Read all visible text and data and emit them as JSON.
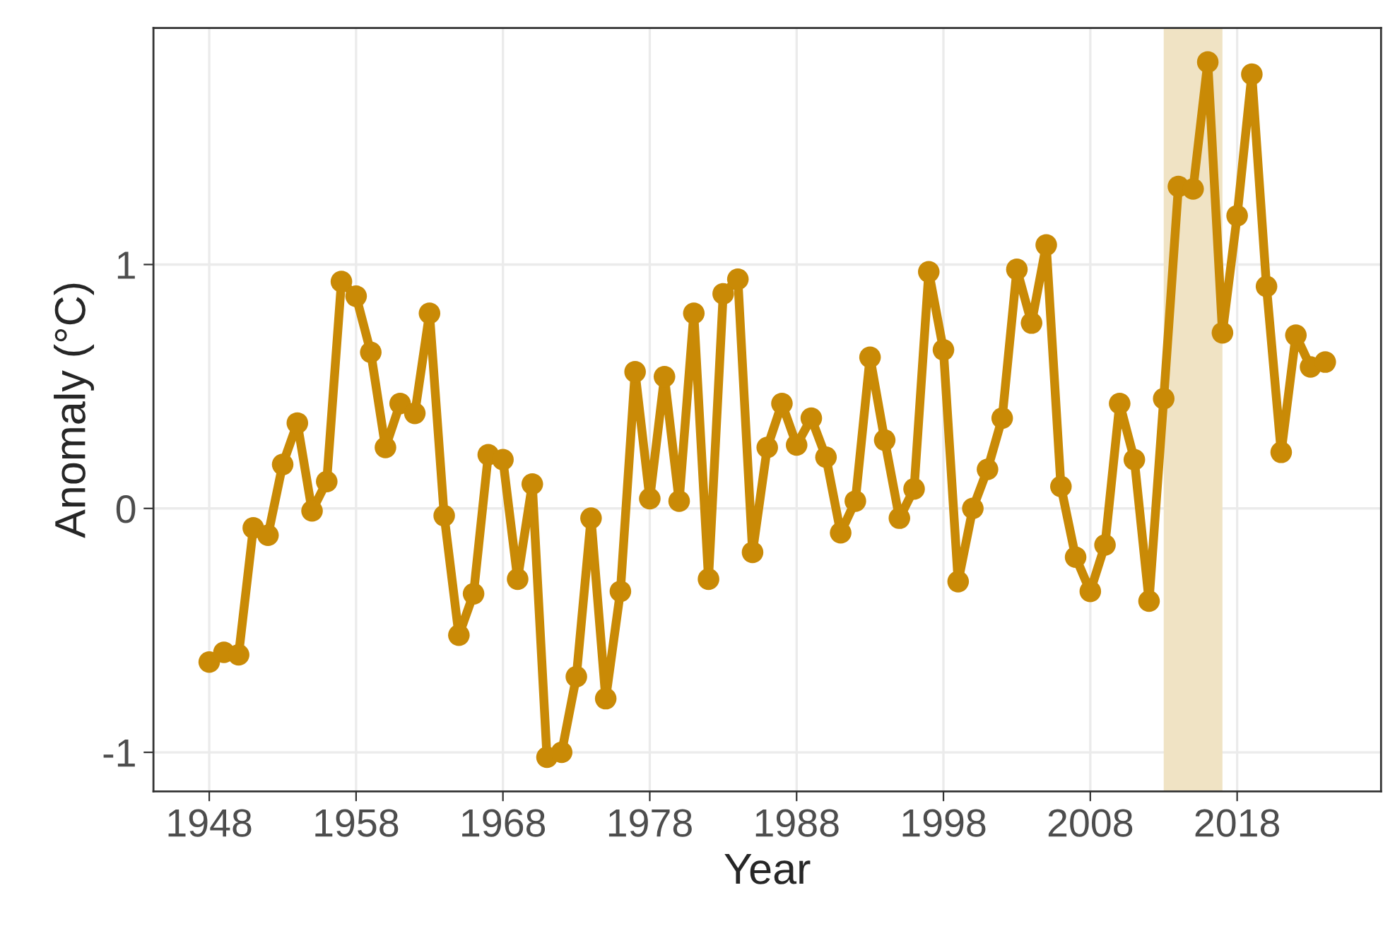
{
  "chart_data": {
    "type": "line",
    "xlabel": "Year",
    "ylabel": "Anomaly (°C)",
    "x": [
      1948,
      1949,
      1950,
      1951,
      1952,
      1953,
      1954,
      1955,
      1956,
      1957,
      1958,
      1959,
      1960,
      1961,
      1962,
      1963,
      1964,
      1965,
      1966,
      1967,
      1968,
      1969,
      1970,
      1971,
      1972,
      1973,
      1974,
      1975,
      1976,
      1977,
      1978,
      1979,
      1980,
      1981,
      1982,
      1983,
      1984,
      1985,
      1986,
      1987,
      1988,
      1989,
      1990,
      1991,
      1992,
      1993,
      1994,
      1995,
      1996,
      1997,
      1998,
      1999,
      2000,
      2001,
      2002,
      2003,
      2004,
      2005,
      2006,
      2007,
      2008,
      2009,
      2010,
      2011,
      2012,
      2013,
      2014,
      2015,
      2016,
      2017,
      2018,
      2019,
      2020,
      2021,
      2022,
      2023,
      2024
    ],
    "series": [
      {
        "color": "#c98a06",
        "values": [
          -0.63,
          -0.59,
          -0.6,
          -0.08,
          -0.11,
          0.18,
          0.35,
          -0.01,
          0.11,
          0.93,
          0.87,
          0.64,
          0.25,
          0.43,
          0.39,
          0.8,
          -0.03,
          -0.52,
          -0.35,
          0.22,
          0.2,
          -0.29,
          0.1,
          -1.02,
          -1.0,
          -0.69,
          -0.04,
          -0.78,
          -0.34,
          0.56,
          0.04,
          0.54,
          0.03,
          0.8,
          -0.29,
          0.88,
          0.94,
          -0.18,
          0.25,
          0.43,
          0.26,
          0.37,
          0.21,
          -0.1,
          0.03,
          0.62,
          0.28,
          -0.04,
          0.08,
          0.97,
          0.65,
          -0.3,
          0.0,
          0.16,
          0.37,
          0.98,
          0.76,
          1.08,
          0.09,
          -0.2,
          -0.34,
          -0.15,
          0.43,
          0.2,
          -0.38,
          0.45,
          1.32,
          1.31,
          1.83,
          0.72,
          1.2,
          1.78,
          0.91,
          0.23,
          0.71,
          0.58,
          0.6
        ]
      }
    ],
    "bands": [
      {
        "axis": "x",
        "from": 2013,
        "to": 2017,
        "color": "#f0e3c4"
      }
    ],
    "xlim": [
      1944.2,
      2027.8
    ],
    "xticks": [
      1948,
      1958,
      1968,
      1978,
      1988,
      1998,
      2008,
      2018
    ],
    "ylim": [
      -1.16,
      1.97
    ],
    "yticks": [
      -1,
      0,
      1
    ],
    "grid": true,
    "marker": "circle",
    "line_style": "solid",
    "legend": false
  }
}
